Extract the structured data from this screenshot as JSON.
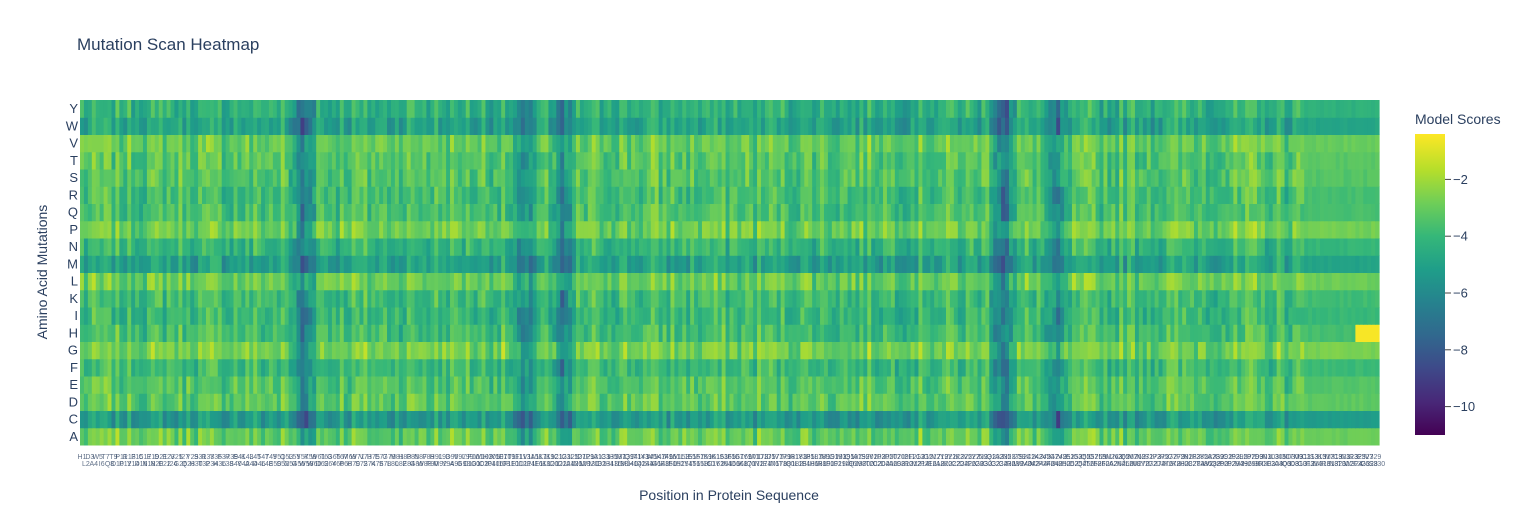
{
  "chart_data": {
    "type": "heatmap",
    "title": "Mutation Scan Heatmap",
    "xlabel": "Position in Protein Sequence",
    "ylabel": "Amino Acid Mutations",
    "y_categories": [
      "A",
      "C",
      "D",
      "E",
      "F",
      "G",
      "H",
      "I",
      "K",
      "L",
      "M",
      "N",
      "P",
      "Q",
      "R",
      "S",
      "T",
      "V",
      "W",
      "Y"
    ],
    "x_tick_labels_legible": false,
    "x_count_approx": 330,
    "colorbar": {
      "title": "Model Scores",
      "colorscale": "Viridis",
      "zmin": -11,
      "zmax": -0.4,
      "ticks": [
        -10,
        -8,
        -6,
        -4,
        -2
      ],
      "tick_labels": [
        "−10",
        "−8",
        "−6",
        "−4",
        "−2"
      ]
    },
    "row_mean_scores": {
      "A": -2.9,
      "C": -5.2,
      "D": -3.1,
      "E": -3.3,
      "F": -3.8,
      "G": -2.6,
      "H": -3.6,
      "I": -3.9,
      "K": -3.7,
      "L": -2.8,
      "M": -4.9,
      "N": -4.0,
      "P": -2.7,
      "Q": -3.5,
      "R": -3.6,
      "S": -3.3,
      "T": -3.2,
      "V": -2.9,
      "W": -4.8,
      "Y": -4.2
    },
    "notable_low_columns_fraction": [
      0.17,
      0.34,
      0.37,
      0.71,
      0.75
    ],
    "notable_high_region": {
      "row": "H",
      "columns_fraction": [
        0.98,
        1.0
      ],
      "approx_score": -0.5
    }
  },
  "colors": {
    "viridis": [
      "#440154",
      "#482878",
      "#3e4989",
      "#31688e",
      "#26828e",
      "#1f9e89",
      "#35b779",
      "#6ece58",
      "#b5de2b",
      "#fde725"
    ],
    "text": "#2a3f5f",
    "background": "#ffffff"
  }
}
